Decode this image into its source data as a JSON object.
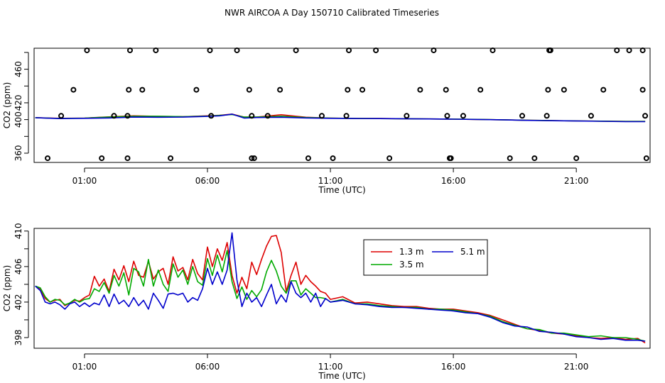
{
  "title": "NWR AIRCOA A  Day 150710  Calibrated Timeseries",
  "chart_data": [
    {
      "type": "line",
      "xlabel": "Time (UTC)",
      "ylabel": "CO2 (ppm)",
      "x_ticks": [
        "01:00",
        "06:00",
        "11:00",
        "16:00",
        "21:00"
      ],
      "x_tick_hours": [
        1,
        6,
        11,
        16,
        21
      ],
      "y_ticks": [
        360,
        380,
        400,
        420,
        440,
        460,
        480
      ],
      "y_tick_labels": [
        "360",
        "",
        "400",
        "420",
        "",
        "460",
        ""
      ],
      "xlim": [
        -1.05,
        24.0
      ],
      "ylim": [
        349,
        485
      ],
      "legend": false,
      "series": [
        {
          "color": "#dd0000",
          "x": [
            -1.0,
            0,
            1,
            2,
            3,
            4,
            5,
            6,
            6.5,
            7,
            7.5,
            8,
            9,
            10,
            11,
            12,
            13,
            14,
            15,
            16,
            17,
            18,
            19,
            20,
            21,
            22,
            23,
            23.8
          ],
          "y": [
            402.3,
            401.5,
            401.8,
            403.2,
            404.5,
            403.8,
            403.5,
            404.5,
            405.2,
            406.5,
            403,
            403,
            405.8,
            402.8,
            401.8,
            401.4,
            401.3,
            401.0,
            400.8,
            400.5,
            400.2,
            399.8,
            399.2,
            398.8,
            398.4,
            398.2,
            397.8,
            397.8
          ]
        },
        {
          "color": "#00aa00",
          "x": [
            -1.0,
            0,
            1,
            2,
            3,
            4,
            5,
            6,
            6.5,
            7,
            7.5,
            8,
            9,
            10,
            11,
            12,
            13,
            14,
            15,
            16,
            17,
            18,
            19,
            20,
            21,
            22,
            23,
            23.8
          ],
          "y": [
            402.3,
            401.4,
            401.8,
            403.0,
            404.0,
            404.0,
            403.5,
            404.2,
            405.0,
            406.0,
            403,
            403,
            404.0,
            402.5,
            401.7,
            401.4,
            401.2,
            401.0,
            400.8,
            400.6,
            400.3,
            399.8,
            399.2,
            398.8,
            398.4,
            398.2,
            397.8,
            397.8
          ]
        },
        {
          "color": "#0000cc",
          "x": [
            -1.0,
            0,
            1,
            2,
            3,
            4,
            5,
            6,
            6.5,
            7,
            7.5,
            8,
            9,
            10,
            11,
            12,
            13,
            14,
            15,
            16,
            17,
            18,
            19,
            20,
            21,
            22,
            23,
            23.8
          ],
          "y": [
            402.3,
            401.2,
            401.5,
            402.0,
            403.0,
            402.8,
            403.0,
            403.8,
            404.5,
            406.5,
            401.8,
            402.5,
            402.8,
            402.0,
            401.5,
            401.3,
            401.2,
            401.0,
            400.8,
            400.5,
            400.2,
            399.8,
            399.1,
            398.7,
            398.3,
            398.0,
            397.6,
            397.6
          ]
        }
      ],
      "outliers": {
        "x": [
          -0.5,
          0.05,
          0.55,
          1.1,
          1.7,
          2.2,
          2.75,
          2.75,
          2.8,
          2.85,
          3.35,
          3.9,
          4.5,
          5.55,
          6.1,
          6.15,
          7.2,
          7.7,
          7.8,
          7.8,
          7.9,
          8.45,
          8.95,
          9.6,
          10.1,
          10.65,
          11.1,
          11.65,
          11.7,
          11.75,
          12.3,
          12.85,
          13.4,
          14.1,
          14.65,
          15.2,
          15.7,
          15.75,
          15.85,
          15.9,
          16.4,
          17.1,
          17.6,
          18.3,
          18.8,
          19.3,
          19.8,
          19.85,
          19.9,
          19.95,
          20.5,
          21.0,
          21.6,
          22.1,
          22.65,
          23.15,
          23.7,
          23.7,
          23.8,
          23.85
        ],
        "y": [
          354,
          404.5,
          435.5,
          482.5,
          354,
          404.5,
          354,
          404.5,
          435.5,
          482.5,
          435.5,
          482.5,
          354,
          435.5,
          482.5,
          404.5,
          482.5,
          435.5,
          404.5,
          354,
          354,
          404.5,
          435.5,
          482.5,
          354,
          404.5,
          354,
          404.5,
          435.5,
          482.5,
          435.5,
          482.5,
          354,
          404.5,
          435.5,
          482.5,
          435.5,
          404.5,
          354,
          354,
          404.5,
          435.5,
          482.5,
          354,
          404.5,
          354,
          404.5,
          435.5,
          482.5,
          482.5,
          435.5,
          354,
          404.5,
          435.5,
          482.5,
          482.5,
          435.5,
          482.5,
          404.5,
          354
        ]
      }
    },
    {
      "type": "line",
      "xlabel": "Time (UTC)",
      "ylabel": "CO2 (ppm)",
      "x_ticks": [
        "01:00",
        "06:00",
        "11:00",
        "16:00",
        "21:00"
      ],
      "x_tick_hours": [
        1,
        6,
        11,
        16,
        21
      ],
      "y_ticks": [
        398,
        400,
        402,
        404,
        406,
        408,
        410
      ],
      "y_tick_labels": [
        "398",
        "",
        "402",
        "",
        "406",
        "",
        "410"
      ],
      "xlim": [
        -1.05,
        24.0
      ],
      "ylim": [
        396.8,
        410.3
      ],
      "legend": true,
      "legend_position": "top-center",
      "series": [
        {
          "name": "1.3 m",
          "color": "#dd0000",
          "x": [
            -1.0,
            -0.8,
            -0.6,
            -0.4,
            -0.2,
            0.0,
            0.2,
            0.4,
            0.6,
            0.8,
            1.0,
            1.2,
            1.4,
            1.6,
            1.8,
            2.0,
            2.2,
            2.4,
            2.6,
            2.8,
            3.0,
            3.2,
            3.4,
            3.6,
            3.8,
            4.0,
            4.2,
            4.4,
            4.6,
            4.8,
            5.0,
            5.2,
            5.4,
            5.6,
            5.8,
            6.0,
            6.2,
            6.4,
            6.6,
            6.8,
            7.0,
            7.2,
            7.4,
            7.6,
            7.8,
            8.0,
            8.2,
            8.4,
            8.6,
            8.8,
            9.0,
            9.2,
            9.4,
            9.6,
            9.8,
            10.0,
            10.2,
            10.4,
            10.6,
            10.8,
            11.0,
            11.5,
            12.0,
            12.5,
            13.0,
            13.5,
            14.0,
            14.5,
            15.0,
            15.5,
            16.0,
            16.5,
            17.0,
            17.5,
            18.0,
            18.5,
            19.0,
            19.5,
            20.0,
            20.5,
            21.0,
            21.5,
            22.0,
            22.5,
            23.0,
            23.5,
            23.8
          ],
          "y": [
            403.8,
            403.5,
            402.4,
            402.0,
            402.2,
            402.3,
            401.6,
            401.9,
            402.2,
            402.1,
            402.5,
            402.8,
            404.9,
            403.8,
            404.6,
            403.2,
            405.7,
            404.5,
            406.1,
            404.3,
            406.6,
            405.0,
            404.8,
            406.6,
            404.6,
            405.4,
            405.8,
            404.0,
            407.1,
            405.5,
            405.9,
            404.5,
            406.8,
            405.2,
            404.5,
            408.2,
            406.0,
            408.0,
            406.7,
            408.7,
            405.0,
            403.0,
            404.8,
            403.5,
            406.5,
            405.1,
            406.8,
            408.3,
            409.4,
            409.5,
            407.6,
            403.2,
            405.0,
            406.5,
            404.0,
            405.0,
            404.3,
            403.8,
            403.2,
            403.0,
            402.3,
            402.6,
            401.9,
            402.0,
            401.8,
            401.6,
            401.5,
            401.5,
            401.3,
            401.2,
            401.2,
            401.0,
            400.8,
            400.5,
            400.0,
            399.5,
            399.0,
            398.8,
            398.5,
            398.4,
            398.2,
            398.0,
            397.9,
            398.0,
            397.8,
            397.9,
            397.4
          ]
        },
        {
          "name": "3.5 m",
          "color": "#00aa00",
          "x": [
            -1.0,
            -0.8,
            -0.6,
            -0.4,
            -0.2,
            0.0,
            0.2,
            0.4,
            0.6,
            0.8,
            1.0,
            1.2,
            1.4,
            1.6,
            1.8,
            2.0,
            2.2,
            2.4,
            2.6,
            2.8,
            3.0,
            3.2,
            3.4,
            3.6,
            3.8,
            4.0,
            4.2,
            4.4,
            4.6,
            4.8,
            5.0,
            5.2,
            5.4,
            5.6,
            5.8,
            6.0,
            6.2,
            6.4,
            6.6,
            6.8,
            7.0,
            7.2,
            7.4,
            7.6,
            7.8,
            8.0,
            8.2,
            8.4,
            8.6,
            8.8,
            9.0,
            9.2,
            9.4,
            9.6,
            9.8,
            10.0,
            10.2,
            10.4,
            10.6,
            10.8,
            11.0,
            11.5,
            12.0,
            12.5,
            13.0,
            13.5,
            14.0,
            14.5,
            15.0,
            15.5,
            16.0,
            16.5,
            17.0,
            17.5,
            18.0,
            18.5,
            19.0,
            19.5,
            20.0,
            20.5,
            21.0,
            21.5,
            22.0,
            22.5,
            23.0,
            23.5,
            23.8
          ],
          "y": [
            403.8,
            403.6,
            402.6,
            402.0,
            402.3,
            402.2,
            401.7,
            401.9,
            402.3,
            402.0,
            402.3,
            402.4,
            403.5,
            403.2,
            404.2,
            403.0,
            405.0,
            403.8,
            405.3,
            402.8,
            405.8,
            405.4,
            403.8,
            406.8,
            403.8,
            405.6,
            404.0,
            403.2,
            406.3,
            404.8,
            405.6,
            404.0,
            406.0,
            404.3,
            403.9,
            406.9,
            405.0,
            407.3,
            405.4,
            407.8,
            404.3,
            402.4,
            403.7,
            402.3,
            403.3,
            402.6,
            403.4,
            405.4,
            406.7,
            405.5,
            403.8,
            403.0,
            404.4,
            404.4,
            402.8,
            403.5,
            403.0,
            402.5,
            402.5,
            402.4,
            402.0,
            402.3,
            401.8,
            401.8,
            401.6,
            401.5,
            401.4,
            401.4,
            401.2,
            401.2,
            401.1,
            400.9,
            400.7,
            400.4,
            399.8,
            399.4,
            399.0,
            398.9,
            398.5,
            398.5,
            398.3,
            398.1,
            398.2,
            398.0,
            398.0,
            397.8,
            397.6
          ]
        },
        {
          "name": "5.1 m",
          "color": "#0000cc",
          "x": [
            -1.0,
            -0.8,
            -0.6,
            -0.4,
            -0.2,
            0.0,
            0.2,
            0.4,
            0.6,
            0.8,
            1.0,
            1.2,
            1.4,
            1.6,
            1.8,
            2.0,
            2.2,
            2.4,
            2.6,
            2.8,
            3.0,
            3.2,
            3.4,
            3.6,
            3.8,
            4.0,
            4.2,
            4.4,
            4.6,
            4.8,
            5.0,
            5.2,
            5.4,
            5.6,
            5.8,
            6.0,
            6.2,
            6.4,
            6.6,
            6.8,
            7.0,
            7.2,
            7.4,
            7.6,
            7.8,
            8.0,
            8.2,
            8.4,
            8.6,
            8.8,
            9.0,
            9.2,
            9.4,
            9.6,
            9.8,
            10.0,
            10.2,
            10.4,
            10.6,
            10.8,
            11.0,
            11.5,
            12.0,
            12.5,
            13.0,
            13.5,
            14.0,
            14.5,
            15.0,
            15.5,
            16.0,
            16.5,
            17.0,
            17.5,
            18.0,
            18.5,
            19.0,
            19.5,
            20.0,
            20.5,
            21.0,
            21.5,
            22.0,
            22.5,
            23.0,
            23.5,
            23.8
          ],
          "y": [
            403.8,
            403.3,
            402.0,
            401.8,
            402.0,
            401.7,
            401.2,
            401.8,
            402.0,
            401.5,
            401.9,
            401.5,
            401.9,
            401.7,
            402.8,
            401.5,
            402.9,
            401.8,
            402.2,
            401.5,
            402.5,
            401.6,
            402.2,
            401.2,
            403.0,
            402.2,
            401.3,
            402.9,
            403.0,
            402.8,
            403.0,
            402.0,
            402.5,
            402.2,
            403.5,
            405.8,
            404.0,
            405.4,
            404.0,
            405.6,
            409.8,
            404.5,
            401.5,
            403.0,
            402.0,
            402.5,
            401.5,
            402.8,
            404.0,
            401.8,
            402.8,
            402.0,
            404.3,
            403.0,
            402.5,
            403.0,
            402.0,
            403.0,
            401.5,
            402.4,
            402.0,
            402.2,
            401.8,
            401.7,
            401.5,
            401.4,
            401.4,
            401.3,
            401.2,
            401.1,
            401.0,
            400.8,
            400.7,
            400.3,
            399.7,
            399.3,
            399.2,
            398.7,
            398.6,
            398.4,
            398.1,
            398.0,
            397.8,
            397.9,
            397.7,
            397.7,
            397.6
          ]
        }
      ]
    }
  ]
}
